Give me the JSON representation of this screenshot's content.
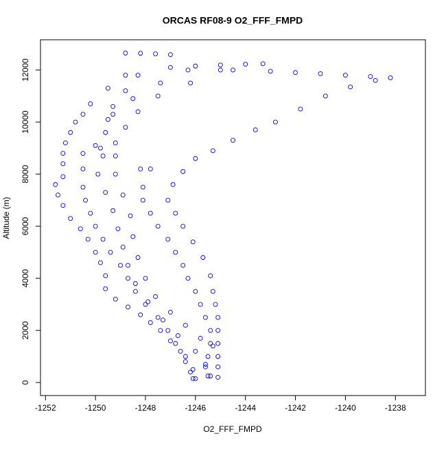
{
  "chart_data": {
    "type": "scatter",
    "title": "ORCAS RF08-9 O2_FFF_FMPD",
    "x_label": "O2_FFF_FMPD",
    "y_label": "Altitude (m)",
    "color": "#0000ff",
    "xlim": [
      -1252.2,
      -1236.8
    ],
    "ylim": [
      -500,
      13160
    ],
    "xticks": [
      -1252,
      -1250,
      -1248,
      -1246,
      -1244,
      -1242,
      -1240,
      -1238
    ],
    "yticks": [
      0,
      2000,
      4000,
      6000,
      8000,
      10000,
      12000
    ],
    "x": [
      -1248.8,
      -1249.5,
      -1250.2,
      -1250.5,
      -1250.8,
      -1251.0,
      -1251.2,
      -1251.3,
      -1251.3,
      -1251.3,
      -1251.6,
      -1251.5,
      -1251.3,
      -1251.0,
      -1250.6,
      -1250.3,
      -1250.0,
      -1249.8,
      -1249.6,
      -1249.6,
      -1249.2,
      -1248.7,
      -1248.2,
      -1247.8,
      -1247.4,
      -1247.0,
      -1246.6,
      -1246.4,
      -1246.2,
      -1246.1,
      -1248.8,
      -1248.2,
      -1247.6,
      -1247.0,
      -1247.0,
      -1246.0,
      -1245.0,
      -1244.0,
      -1243.3,
      -1244.5,
      -1243.0,
      -1242.0,
      -1241.0,
      -1240.0,
      -1239.0,
      -1238.2,
      -1238.8,
      -1239.8,
      -1240.8,
      -1241.8,
      -1242.8,
      -1243.6,
      -1244.5,
      -1245.3,
      -1246.0,
      -1246.5,
      -1246.9,
      -1247.1,
      -1246.8,
      -1246.5,
      -1246.1,
      -1245.7,
      -1245.4,
      -1245.3,
      -1245.2,
      -1245.1,
      -1245.1,
      -1245.1,
      -1245.1,
      -1245.1,
      -1245.1,
      -1248.2,
      -1247.8,
      -1248.1,
      -1248.1,
      -1247.8,
      -1247.5,
      -1247.1,
      -1246.8,
      -1246.5,
      -1246.3,
      -1246.0,
      -1245.8,
      -1245.6,
      -1245.4,
      -1245.4,
      -1245.5,
      -1245.6,
      -1245.5,
      -1250.5,
      -1250.5,
      -1250.5,
      -1250.4,
      -1250.2,
      -1250.0,
      -1249.7,
      -1249.4,
      -1249.0,
      -1248.7,
      -1248.4,
      -1248.0,
      -1247.5,
      -1247.1,
      -1246.8,
      -1246.4,
      -1246.1,
      -1246.0,
      -1249.7,
      -1249.9,
      -1249.6,
      -1249.3,
      -1249.1,
      -1248.9,
      -1248.7,
      -1248.4,
      -1247.9,
      -1247.3,
      -1246.7,
      -1246.0,
      -1245.6,
      -1245.4,
      -1249.2,
      -1249.2,
      -1248.9,
      -1248.6,
      -1248.5,
      -1248.3,
      -1248.0,
      -1247.6,
      -1247.0,
      -1246.4,
      -1245.8,
      -1245.3,
      -1248.3,
      -1248.8,
      -1249.3,
      -1249.5,
      -1249.6,
      -1249.8,
      -1245.0,
      -1246.2,
      -1247.5,
      -1248.3,
      -1248.8,
      -1249.2,
      -1246.3,
      -1247.4,
      -1248.5,
      -1249.3,
      -1250.0
    ],
    "values": [
      11800,
      11300,
      10700,
      10300,
      10000,
      9600,
      9200,
      8800,
      8400,
      7900,
      7600,
      7200,
      6800,
      6300,
      5900,
      5500,
      5000,
      4600,
      4100,
      3600,
      3200,
      2900,
      2600,
      2300,
      2000,
      1600,
      1200,
      800,
      400,
      150,
      12650,
      12640,
      12620,
      12590,
      12100,
      12150,
      12190,
      12220,
      12240,
      12000,
      11950,
      11900,
      11860,
      11800,
      11750,
      11700,
      11600,
      11350,
      11000,
      10500,
      10000,
      9700,
      9300,
      8900,
      8600,
      8100,
      7600,
      7000,
      6500,
      6000,
      5400,
      4800,
      4100,
      3500,
      3000,
      2500,
      2000,
      1500,
      1000,
      600,
      200,
      8200,
      8200,
      7500,
      7000,
      6500,
      6000,
      5500,
      5000,
      4500,
      4000,
      3500,
      3000,
      2500,
      2000,
      1500,
      1000,
      600,
      250,
      8800,
      8200,
      7500,
      7000,
      6500,
      6000,
      5500,
      5000,
      4500,
      4000,
      3500,
      3000,
      2500,
      2000,
      1500,
      1000,
      500,
      150,
      8700,
      8000,
      7300,
      6600,
      5900,
      5200,
      4500,
      3800,
      3100,
      2400,
      1800,
      1200,
      700,
      250,
      8700,
      8000,
      7200,
      6400,
      5600,
      4800,
      4000,
      3300,
      2700,
      2200,
      1700,
      1400,
      11800,
      11200,
      10600,
      10100,
      9600,
      9000,
      12000,
      11500,
      11000,
      10400,
      9800,
      9200,
      12000,
      11500,
      10900,
      10300,
      9100
    ]
  }
}
